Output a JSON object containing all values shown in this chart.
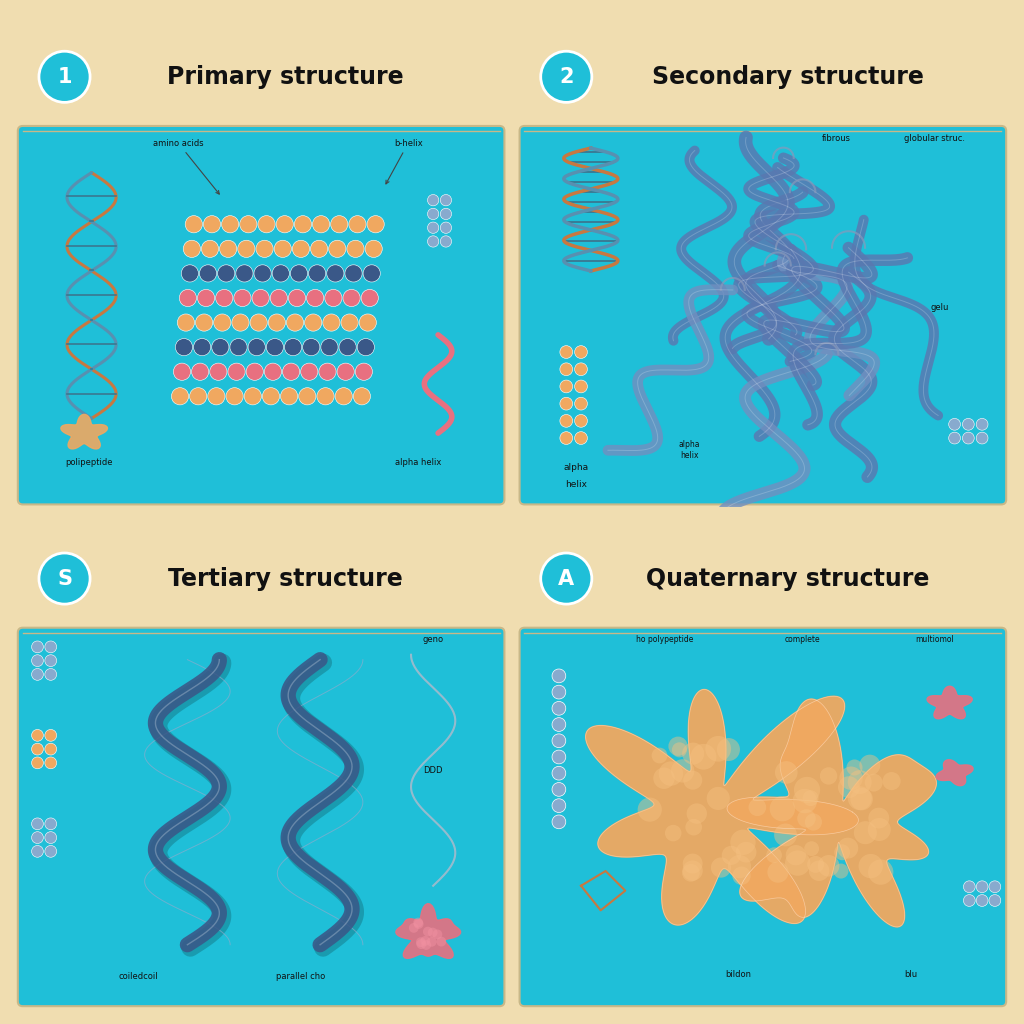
{
  "background_color": "#F0DDB0",
  "teal": "#1FBFD8",
  "header_bg": "#F0DDB0",
  "border_color": "#C8B888",
  "title_color": "#111111",
  "circle_color": "#1FBFD8",
  "orange": "#F0A860",
  "pink": "#E87080",
  "blue_ribbon": "#5A78B0",
  "light_blue": "#88AACE",
  "dark_blue": "#3A5888",
  "dna_orange": "#C87840",
  "dna_blue": "#5890B0",
  "panels": [
    {
      "number": "1",
      "title": "Primary structure"
    },
    {
      "number": "2",
      "title": "Secondary structure"
    },
    {
      "number": "S",
      "title": "Tertiary structure"
    },
    {
      "number": "A",
      "title": "Quaternary structure"
    }
  ]
}
